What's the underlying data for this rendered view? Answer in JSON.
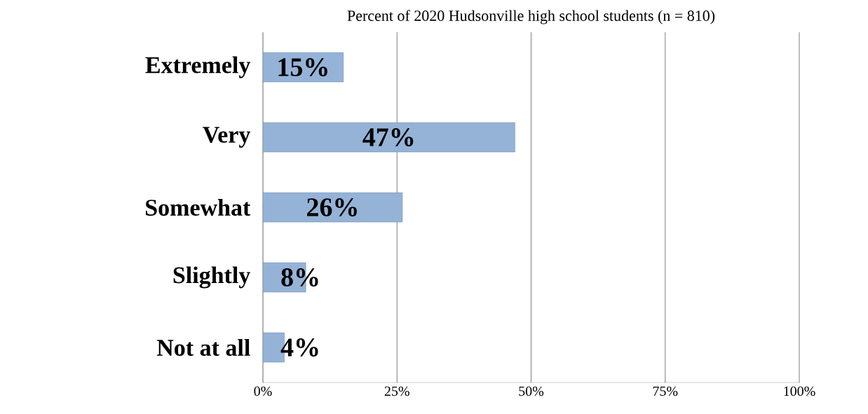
{
  "chart_data": {
    "type": "bar",
    "orientation": "horizontal",
    "title": "Percent of 2020 Hudsonville high school students (n = 810)",
    "categories": [
      "Extremely",
      "Very",
      "Somewhat",
      "Slightly",
      "Not at all"
    ],
    "values": [
      15,
      47,
      26,
      8,
      4
    ],
    "value_labels": [
      "15%",
      "47%",
      "26%",
      "8%",
      "4%"
    ],
    "color": "#95b3d7",
    "xlim": [
      0,
      100
    ],
    "xticks": [
      {
        "value": 0,
        "label": "0%"
      },
      {
        "value": 25,
        "label": "25%"
      },
      {
        "value": 50,
        "label": "50%"
      },
      {
        "value": 75,
        "label": "75%"
      },
      {
        "value": 100,
        "label": "100%"
      }
    ],
    "grid": "x"
  }
}
